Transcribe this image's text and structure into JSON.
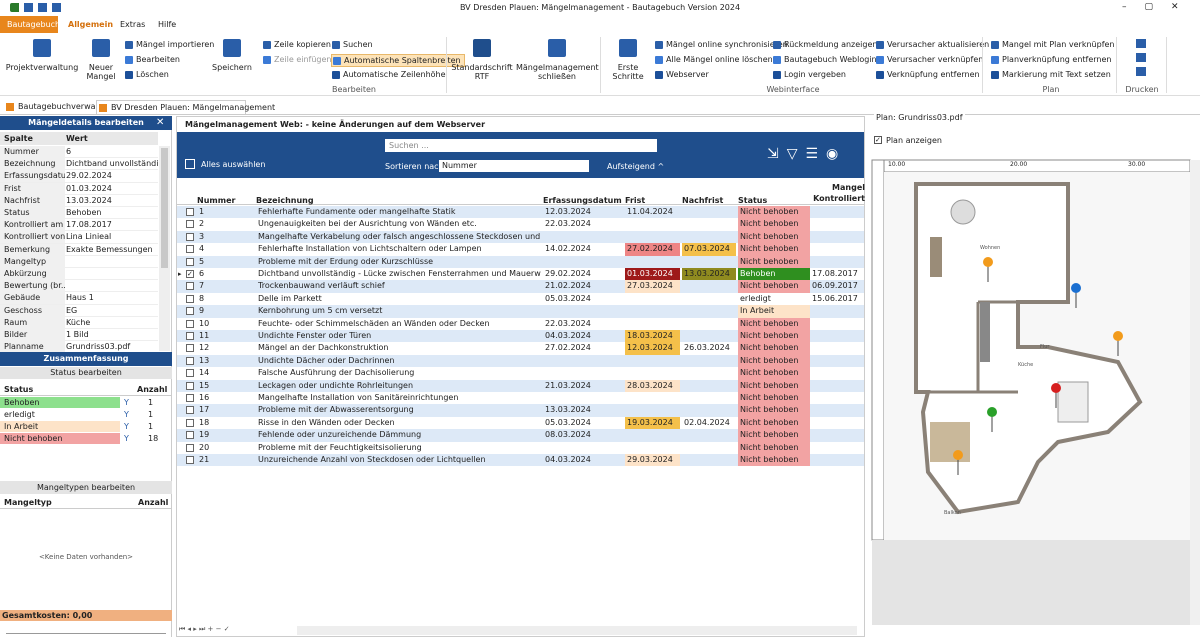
{
  "window": {
    "title": "BV Dresden Plauen: Mängelmanagement - Bautagebuch Version 2024"
  },
  "menu": [
    "Bautagebuch",
    "Allgemein",
    "Extras",
    "Hilfe"
  ],
  "ribbon": {
    "buttons": [
      "Projektverwaltung",
      "Neuer Mangel",
      "Mängel importieren",
      "Bearbeiten",
      "Löschen",
      "Speichern",
      "Zeile kopieren",
      "Zeile einfügen",
      "Suchen",
      "Automatische Spaltenbreiten",
      "Automatische Zeilenhöhe",
      "Standardschrift RTF",
      "Mängelmanagement schließen",
      "Erste Schritte",
      "Mängel online synchronisieren",
      "Alle Mängel online löschen",
      "Webserver",
      "Rückmeldung anzeigen",
      "Bautagebuch Weblogins",
      "Login vergeben",
      "Verursacher aktualisieren",
      "Verursacher verknüpfen",
      "Verknüpfung entfernen",
      "Mangel mit Plan verknüpfen",
      "Planverknüpfung entfernen",
      "Markierung mit Text setzen"
    ],
    "groups": [
      "Bearbeiten",
      "Webinterface",
      "Plan",
      "Drucken"
    ]
  },
  "doc_tabs": [
    "Bautagebuchverwaltung",
    "BV Dresden Plauen: Mängelmanagement"
  ],
  "details": {
    "title": "Mängeldetails bearbeiten",
    "columns": [
      "Spalte",
      "Wert"
    ],
    "rows": [
      [
        "Nummer",
        6
      ],
      [
        "Bezeichnung",
        "Dichtband unvollständig..."
      ],
      [
        "Erfassungsdatum",
        "29.02.2024"
      ],
      [
        "Frist",
        "01.03.2024"
      ],
      [
        "Nachfrist",
        "13.03.2024"
      ],
      [
        "Status",
        "Behoben"
      ],
      [
        "Kontrolliert am",
        "17.08.2017"
      ],
      [
        "Kontrolliert von",
        "Lina Linieal"
      ],
      [
        "Bemerkung",
        "Exakte Bemessungen"
      ],
      [
        "Mangeltyp",
        null
      ],
      [
        "Abkürzung",
        null
      ],
      [
        "Bewertung (br...",
        null
      ],
      [
        "Gebäude",
        "Haus 1"
      ],
      [
        "Geschoss",
        "EG"
      ],
      [
        "Raum",
        "Küche"
      ],
      [
        "Bilder",
        "1 Bild"
      ],
      [
        "Planname",
        "Grundriss03.pdf"
      ]
    ]
  },
  "summary": {
    "title": "Zusammenfassung",
    "edit": "Status bearbeiten",
    "columns": [
      "Status",
      "Anzahl"
    ],
    "rows": [
      {
        "status": "Behoben",
        "count": 1,
        "color": "#8de08d"
      },
      {
        "status": "erledigt",
        "count": 1,
        "color": "#ffffff"
      },
      {
        "status": "In Arbeit",
        "count": 1,
        "color": "#fde3c8"
      },
      {
        "status": "Nicht behoben",
        "count": 18,
        "color": "#f2a3a3"
      }
    ]
  },
  "types": {
    "edit": "Mangeltypen bearbeiten",
    "columns": [
      "Mangeltyp",
      "Anzahl"
    ],
    "empty": "<Keine Daten vorhanden>"
  },
  "costs": "Gesamtkosten: 0,00",
  "main": {
    "title": "Mängelmanagement Web: - keine Änderungen auf dem Webserver",
    "search": "Suchen ...",
    "select_all": "Alles auswählen",
    "sort_label": "Sortieren nach",
    "sort_field": "Nummer",
    "sort_order": "Aufsteigend ^",
    "columns": [
      "Nummer",
      "Bezeichnung",
      "Erfassungsdatum",
      "Frist",
      "Nachfrist",
      "Status",
      "Mangel Kontrolliert a"
    ],
    "rows": [
      {
        "cells": [
          1,
          "Fehlerhafte Fundamente oder mangelhafte Statik",
          "12.03.2024",
          "11.04.2024",
          null,
          "Nicht behoben",
          null
        ],
        "colors": [
          null,
          null,
          null,
          null,
          null,
          "#f2a3a3",
          null
        ]
      },
      {
        "cells": [
          2,
          "Ungenauigkeiten bei der Ausrichtung von Wänden etc.",
          "22.03.2024",
          null,
          null,
          "Nicht behoben",
          null
        ],
        "colors": [
          null,
          null,
          null,
          null,
          null,
          "#f2a3a3",
          null
        ]
      },
      {
        "cells": [
          3,
          "Mangelhafte Verkabelung oder falsch angeschlossene Steckdosen und Schalter",
          null,
          null,
          null,
          "Nicht behoben",
          null
        ],
        "colors": [
          null,
          null,
          null,
          null,
          null,
          "#f2a3a3",
          null
        ]
      },
      {
        "cells": [
          4,
          "Fehlerhafte Installation von Lichtschaltern oder Lampen",
          "14.02.2024",
          "27.02.2024",
          "07.03.2024",
          "Nicht behoben",
          null
        ],
        "colors": [
          null,
          null,
          null,
          "#ee8585",
          "#f4c04a",
          "#f2a3a3",
          null
        ]
      },
      {
        "cells": [
          5,
          "Probleme mit der Erdung oder Kurzschlüsse",
          null,
          null,
          null,
          "Nicht behoben",
          null
        ],
        "colors": [
          null,
          null,
          null,
          null,
          null,
          "#f2a3a3",
          null
        ]
      },
      {
        "cells": [
          6,
          "Dichtband unvollständig - Lücke zwischen Fensterrahmen und Mauerwerk",
          "29.02.2024",
          "01.03.2024",
          "13.03.2024",
          "Behoben",
          "17.08.2017"
        ],
        "colors": [
          null,
          null,
          null,
          "#9e1a1a",
          "#8f8a1f",
          "#2f8f1f",
          null
        ],
        "checked": true
      },
      {
        "cells": [
          7,
          "Trockenbauwand verläuft schief",
          "21.02.2024",
          "27.03.2024",
          null,
          "Nicht behoben",
          "06.09.2017"
        ],
        "colors": [
          null,
          null,
          null,
          "#fde3c8",
          null,
          "#f2a3a3",
          null
        ]
      },
      {
        "cells": [
          8,
          "Delle im Parkett",
          "05.03.2024",
          null,
          null,
          "erledigt",
          "15.06.2017"
        ],
        "colors": [
          null,
          null,
          null,
          null,
          null,
          null,
          null
        ]
      },
      {
        "cells": [
          9,
          "Kernbohrung um 5 cm versetzt",
          null,
          null,
          null,
          "In Arbeit",
          null
        ],
        "colors": [
          null,
          null,
          null,
          null,
          null,
          "#fde3c8",
          null
        ]
      },
      {
        "cells": [
          10,
          "Feuchte- oder Schimmelschäden an Wänden oder Decken",
          "22.03.2024",
          null,
          null,
          "Nicht behoben",
          null
        ],
        "colors": [
          null,
          null,
          null,
          null,
          null,
          "#f2a3a3",
          null
        ]
      },
      {
        "cells": [
          11,
          "Undichte Fenster oder Türen",
          "04.03.2024",
          "18.03.2024",
          null,
          "Nicht behoben",
          null
        ],
        "colors": [
          null,
          null,
          null,
          "#f4c04a",
          null,
          "#f2a3a3",
          null
        ]
      },
      {
        "cells": [
          12,
          "Mängel an der Dachkonstruktion",
          "27.02.2024",
          "12.03.2024",
          "26.03.2024",
          "Nicht behoben",
          null
        ],
        "colors": [
          null,
          null,
          null,
          "#f4c04a",
          null,
          "#f2a3a3",
          null
        ]
      },
      {
        "cells": [
          13,
          "Undichte Dächer oder Dachrinnen",
          null,
          null,
          null,
          "Nicht behoben",
          null
        ],
        "colors": [
          null,
          null,
          null,
          null,
          null,
          "#f2a3a3",
          null
        ]
      },
      {
        "cells": [
          14,
          "Falsche Ausführung der Dachisolierung",
          null,
          null,
          null,
          "Nicht behoben",
          null
        ],
        "colors": [
          null,
          null,
          null,
          null,
          null,
          "#f2a3a3",
          null
        ]
      },
      {
        "cells": [
          15,
          "Leckagen oder undichte Rohrleitungen",
          "21.03.2024",
          "28.03.2024",
          null,
          "Nicht behoben",
          null
        ],
        "colors": [
          null,
          null,
          null,
          "#fde3c8",
          null,
          "#f2a3a3",
          null
        ]
      },
      {
        "cells": [
          16,
          "Mangelhafte Installation von Sanitäreinrichtungen",
          null,
          null,
          null,
          "Nicht behoben",
          null
        ],
        "colors": [
          null,
          null,
          null,
          null,
          null,
          "#f2a3a3",
          null
        ]
      },
      {
        "cells": [
          17,
          "Probleme mit der Abwasserentsorgung",
          "13.03.2024",
          null,
          null,
          "Nicht behoben",
          null
        ],
        "colors": [
          null,
          null,
          null,
          null,
          null,
          "#f2a3a3",
          null
        ]
      },
      {
        "cells": [
          18,
          "Risse in den Wänden oder Decken",
          "05.03.2024",
          "19.03.2024",
          "02.04.2024",
          "Nicht behoben",
          null
        ],
        "colors": [
          null,
          null,
          null,
          "#f4c04a",
          null,
          "#f2a3a3",
          null
        ]
      },
      {
        "cells": [
          19,
          "Fehlende oder unzureichende Dämmung",
          "08.03.2024",
          null,
          null,
          "Nicht behoben",
          null
        ],
        "colors": [
          null,
          null,
          null,
          null,
          null,
          "#f2a3a3",
          null
        ]
      },
      {
        "cells": [
          20,
          "Probleme mit der Feuchtigkeitsisolierung",
          null,
          null,
          null,
          "Nicht behoben",
          null
        ],
        "colors": [
          null,
          null,
          null,
          null,
          null,
          "#f2a3a3",
          null
        ]
      },
      {
        "cells": [
          21,
          "Unzureichende Anzahl von Steckdosen oder Lichtquellen",
          "04.03.2024",
          "29.03.2024",
          null,
          "Nicht behoben",
          null
        ],
        "colors": [
          null,
          null,
          null,
          "#fde3c8",
          null,
          "#f2a3a3",
          null
        ]
      }
    ]
  },
  "plan": {
    "title": "Plan: Grundriss03.pdf",
    "show": "Plan anzeigen",
    "ruler": [
      "10.00",
      "20.00",
      "30.00"
    ],
    "rooms": [
      "Wohnen",
      "Küche",
      "Flur",
      "Balkon"
    ]
  }
}
